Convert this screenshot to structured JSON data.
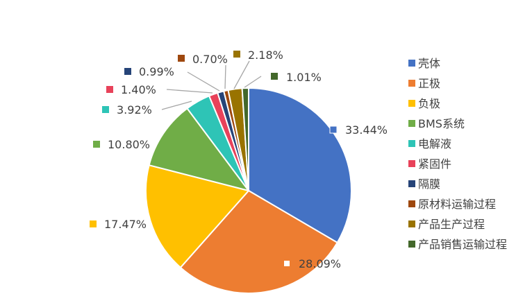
{
  "chart_data": {
    "type": "pie",
    "legend_position": "right",
    "slices": [
      {
        "name": "壳体",
        "value": 33.44,
        "label": "33.44%",
        "color": "#4472C4"
      },
      {
        "name": "正极",
        "value": 28.09,
        "label": "28.09%",
        "color": "#ED7D31"
      },
      {
        "name": "负极",
        "value": 17.47,
        "label": "17.47%",
        "color": "#FFC000"
      },
      {
        "name": "BMS系统",
        "value": 10.8,
        "label": "10.80%",
        "color": "#70AD47"
      },
      {
        "name": "电解液",
        "value": 3.92,
        "label": "3.92%",
        "color": "#2EC4B6"
      },
      {
        "name": "紧固件",
        "value": 1.4,
        "label": "1.40%",
        "color": "#E8425A"
      },
      {
        "name": "隔膜",
        "value": 0.99,
        "label": "0.99%",
        "color": "#264478"
      },
      {
        "name": "原材料运输过程",
        "value": 0.7,
        "label": "0.70%",
        "color": "#9E480E"
      },
      {
        "name": "产品生产过程",
        "value": 2.18,
        "label": "2.18%",
        "color": "#997300"
      },
      {
        "name": "产品销售运输过程",
        "value": 1.01,
        "label": "1.01%",
        "color": "#43682B"
      }
    ]
  }
}
